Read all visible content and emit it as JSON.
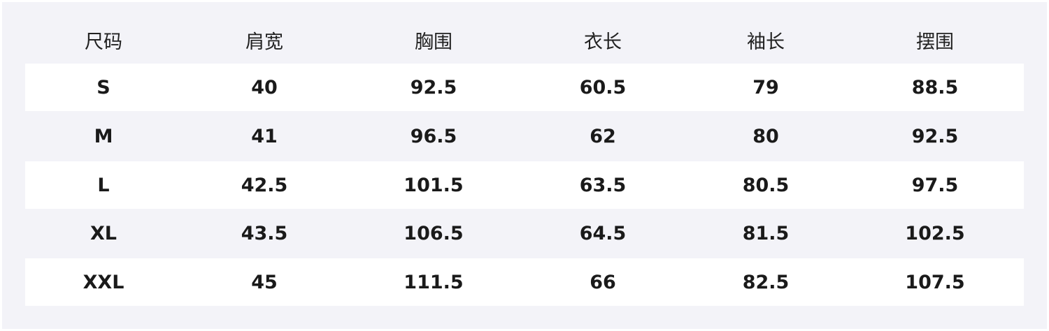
{
  "table": {
    "headers": [
      "尺码",
      "肩宽",
      "胸围",
      "衣长",
      "袖长",
      "摆围"
    ],
    "rows": [
      [
        "S",
        "40",
        "92.5",
        "60.5",
        "79",
        "88.5"
      ],
      [
        "M",
        "41",
        "96.5",
        "62",
        "80",
        "92.5"
      ],
      [
        "L",
        "42.5",
        "101.5",
        "63.5",
        "80.5",
        "97.5"
      ],
      [
        "XL",
        "43.5",
        "106.5",
        "64.5",
        "81.5",
        "102.5"
      ],
      [
        "XXL",
        "45",
        "111.5",
        "66",
        "82.5",
        "107.5"
      ]
    ]
  }
}
